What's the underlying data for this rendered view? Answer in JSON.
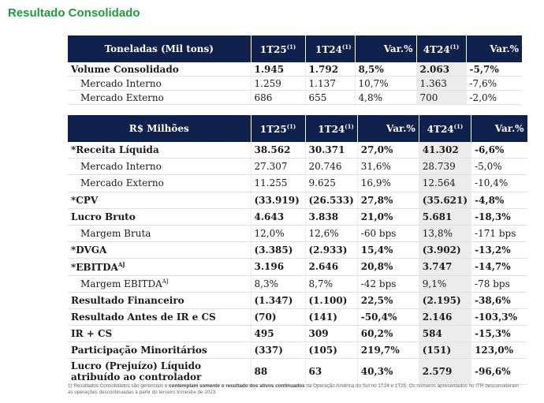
{
  "title": "Resultado Consolidado",
  "table1": {
    "headers": [
      "Toneladas (Mil tons)",
      "1T25",
      "1T24",
      "Var.%",
      "4T24",
      "Var.%"
    ],
    "header_sup": "(1)",
    "rows": [
      {
        "label": "Volume Consolidado",
        "v": [
          "1.945",
          "1.792",
          "8,5%",
          "2.063",
          "-5,7%"
        ]
      },
      {
        "label": "Mercado Interno",
        "v": [
          "1.259",
          "1.137",
          "10,7%",
          "1.363",
          "-7,6%"
        ]
      },
      {
        "label": "Mercado Externo",
        "v": [
          "686",
          "655",
          "4,8%",
          "700",
          "-2,0%"
        ]
      }
    ]
  },
  "table2": {
    "headers": [
      "R$ Milhões",
      "1T25",
      "1T24",
      "Var.%",
      "4T24",
      "Var.%"
    ],
    "header_sup": "(1)",
    "rows": [
      {
        "label": "*Receita Líquida",
        "v": [
          "38.562",
          "30.371",
          "27,0%",
          "41.302",
          "-6,6%"
        ]
      },
      {
        "label": "Mercado Interno",
        "v": [
          "27.307",
          "20.746",
          "31,6%",
          "28.739",
          "-5,0%"
        ]
      },
      {
        "label": "Mercado Externo",
        "v": [
          "11.255",
          "9.625",
          "16,9%",
          "12.564",
          "-10,4%"
        ]
      },
      {
        "label": "*CPV",
        "v": [
          "(33.919)",
          "(26.533)",
          "27,8%",
          "(35.621)",
          "-4,8%"
        ]
      },
      {
        "label": "Lucro Bruto",
        "v": [
          "4.643",
          "3.838",
          "21,0%",
          "5.681",
          "-18,3%"
        ]
      },
      {
        "label": "Margem Bruta",
        "v": [
          "12,0%",
          "12,6%",
          "-60 bps",
          "13,8%",
          "-171 bps"
        ]
      },
      {
        "label": "*DVGA",
        "v": [
          "(3.385)",
          "(2.933)",
          "15,4%",
          "(3.902)",
          "-13,2%"
        ]
      },
      {
        "label": "*EBITDA",
        "sup": "AJ",
        "v": [
          "3.196",
          "2.646",
          "20,8%",
          "3.747",
          "-14,7%"
        ]
      },
      {
        "label": "Margem EBITDA",
        "sup": "AJ",
        "v": [
          "8,3%",
          "8,7%",
          "-42 bps",
          "9,1%",
          "-78 bps"
        ]
      },
      {
        "label": "Resultado Financeiro",
        "v": [
          "(1.347)",
          "(1.100)",
          "22,5%",
          "(2.195)",
          "-38,6%"
        ]
      },
      {
        "label": "Resultado Antes de IR e CS",
        "v": [
          "(70)",
          "(141)",
          "-50,4%",
          "2.146",
          "-103,3%"
        ]
      },
      {
        "label": "IR + CS",
        "v": [
          "495",
          "309",
          "60,2%",
          "584",
          "-15,3%"
        ]
      },
      {
        "label": "Participação Minoritários",
        "v": [
          "(337)",
          "(105)",
          "219,7%",
          "(151)",
          "123,0%"
        ]
      },
      {
        "label": "Lucro (Prejuízo) Líquido atribuído ao controlador",
        "v": [
          "88",
          "63",
          "40,3%",
          "2.579",
          "-96,6%"
        ]
      }
    ]
  },
  "footnote": {
    "part1": "1) Resultados Consolidados são gerenciais e ",
    "bold": "contemplam somente o resultado dos ativos continuados",
    "part2": " da Operação América do Sul no 1T24 e 1T25. Os números apresentados no ITR desconsideram as operações descontinuadas a partir do terceiro trimestre de 2023."
  }
}
